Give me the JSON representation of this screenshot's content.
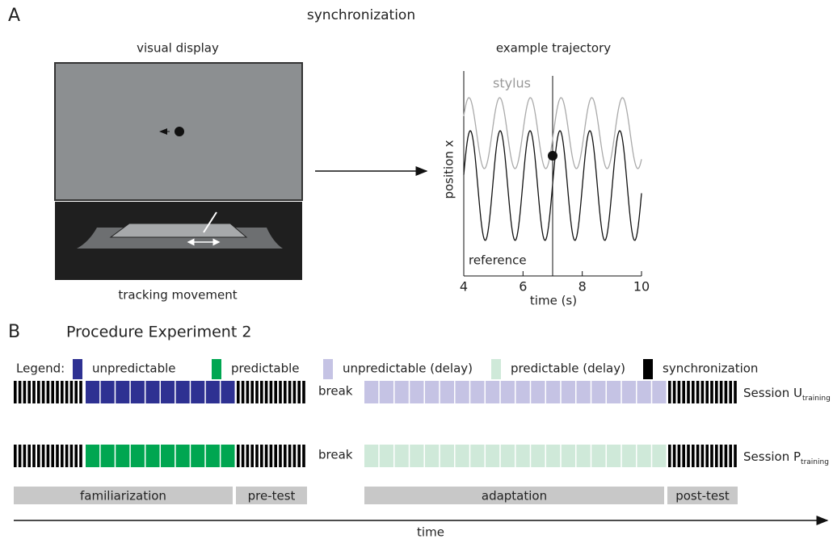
{
  "panel_a": {
    "label": "A",
    "title": "synchronization",
    "visual_display": "visual display",
    "tracking_movement": "tracking movement",
    "trajectory": {
      "title": "example trajectory",
      "stylus": "stylus",
      "reference": "reference",
      "x_label": "time (s)",
      "y_label": "position x",
      "xlim": [
        4,
        10
      ],
      "xticks": [
        4,
        6,
        8,
        10
      ]
    }
  },
  "panel_b": {
    "label": "B",
    "title": "Procedure Experiment 2",
    "legend_label": "Legend:",
    "legend": [
      {
        "name": "unpredictable",
        "color": "#2e3192"
      },
      {
        "name": "predictable",
        "color": "#00a651"
      },
      {
        "name": "unpredictable (delay)",
        "color": "#c5c3e4"
      },
      {
        "name": "predictable (delay)",
        "color": "#cfe9d9"
      },
      {
        "name": "synchronization",
        "color": "#000000"
      }
    ],
    "sessions": [
      {
        "name": "Session U",
        "subscript": "training",
        "break": "break"
      },
      {
        "name": "Session P",
        "subscript": "training",
        "break": "break"
      }
    ],
    "phases": [
      "familiarization",
      "pre-test",
      "adaptation",
      "post-test"
    ],
    "time_label": "time"
  }
}
